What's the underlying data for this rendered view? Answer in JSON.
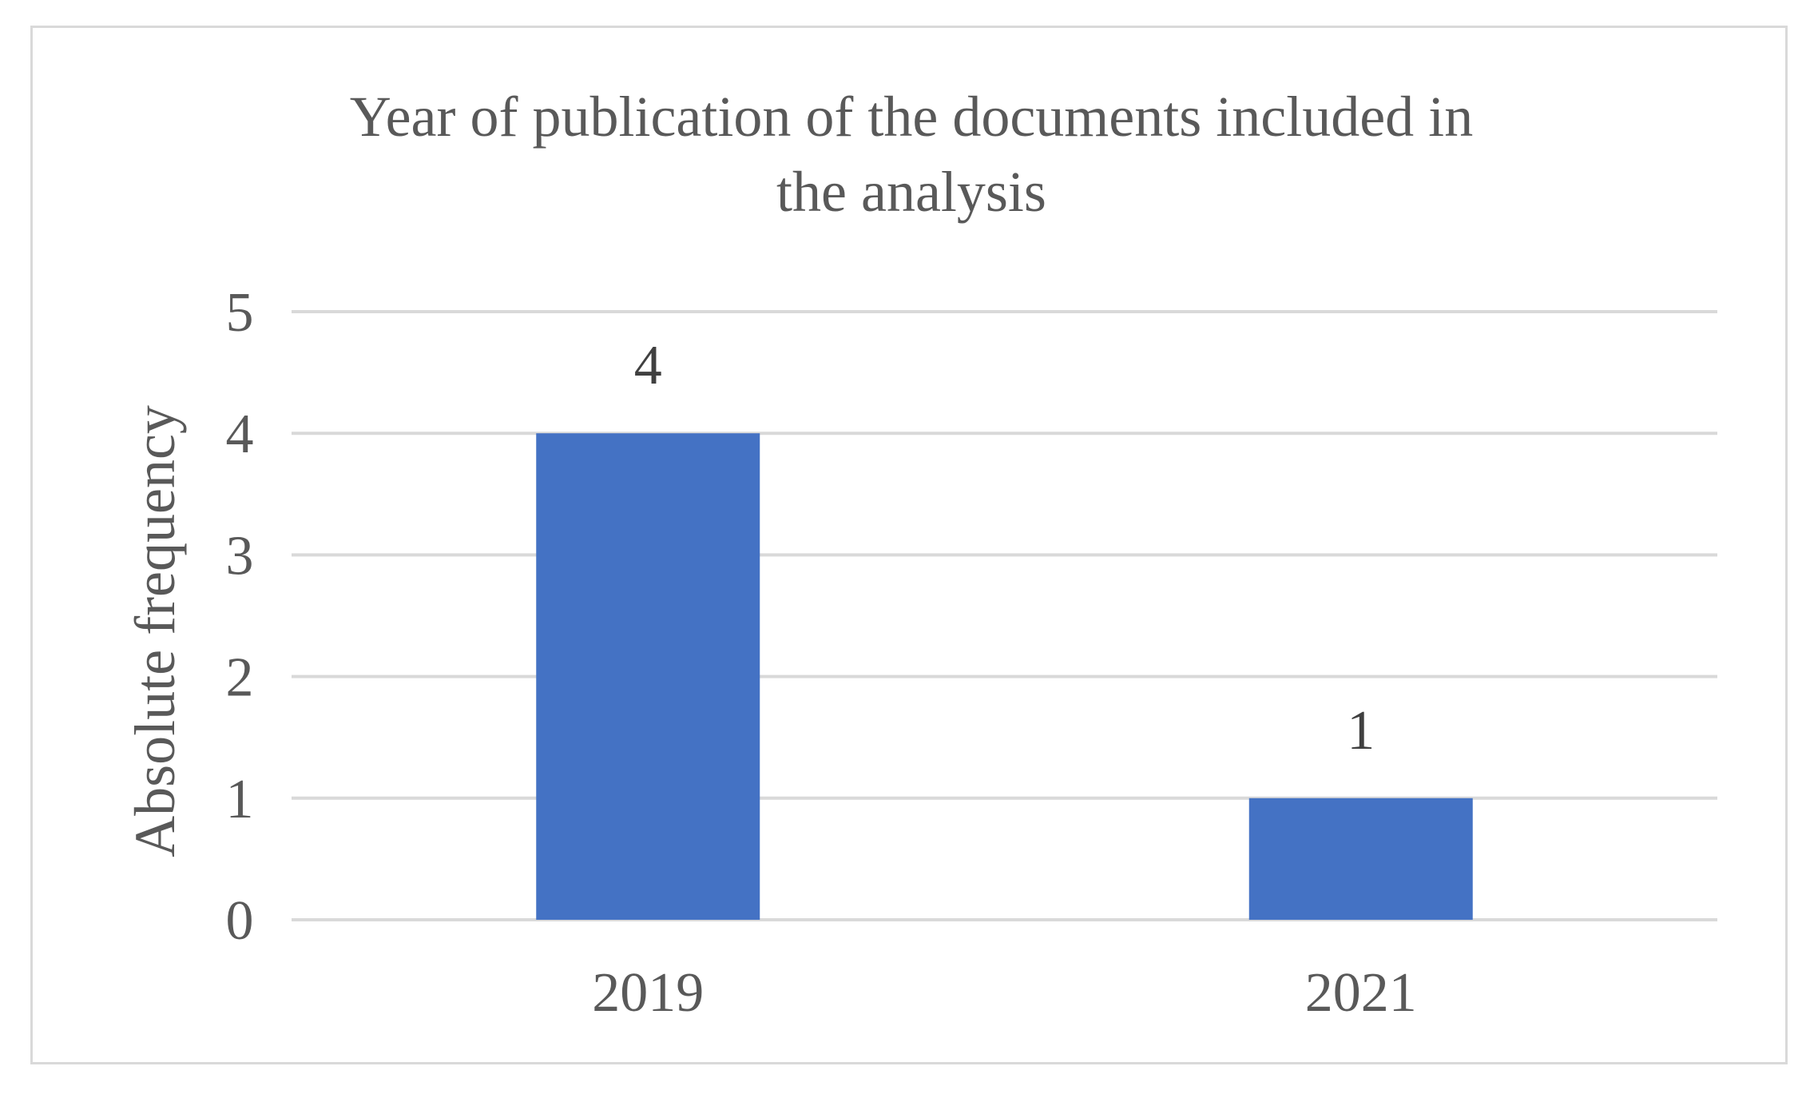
{
  "chart_data": {
    "type": "bar",
    "title_lines": [
      "Year of publication of the documents included in",
      "the analysis"
    ],
    "xlabel": "",
    "ylabel": "Absolute frequency",
    "categories": [
      "2019",
      "2021"
    ],
    "values": [
      4,
      1
    ],
    "data_labels": [
      "4",
      "1"
    ],
    "ylim": [
      0,
      5
    ],
    "y_ticks": [
      "0",
      "1",
      "2",
      "3",
      "4",
      "5"
    ],
    "grid": true,
    "legend": "none",
    "colors": {
      "bar": "#4472c4",
      "grid": "#d9d9d9",
      "text": "#595959",
      "data_label": "#404040"
    }
  }
}
